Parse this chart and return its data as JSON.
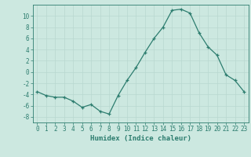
{
  "x": [
    0,
    1,
    2,
    3,
    4,
    5,
    6,
    7,
    8,
    9,
    10,
    11,
    12,
    13,
    14,
    15,
    16,
    17,
    18,
    19,
    20,
    21,
    22,
    23
  ],
  "y": [
    -3.5,
    -4.2,
    -4.5,
    -4.5,
    -5.2,
    -6.3,
    -5.8,
    -7.0,
    -7.5,
    -4.2,
    -1.5,
    0.8,
    3.5,
    6.0,
    8.0,
    11.0,
    11.2,
    10.5,
    7.0,
    4.5,
    3.0,
    -0.5,
    -1.5,
    -3.5
  ],
  "line_color": "#2d7d6f",
  "marker": "+",
  "marker_color": "#2d7d6f",
  "bg_color": "#cce8e0",
  "grid_color": "#b8d8d0",
  "axis_color": "#2d7d6f",
  "xlabel": "Humidex (Indice chaleur)",
  "ylim": [
    -9,
    12
  ],
  "xlim": [
    -0.5,
    23.5
  ],
  "yticks": [
    -8,
    -6,
    -4,
    -2,
    0,
    2,
    4,
    6,
    8,
    10
  ],
  "xticks": [
    0,
    1,
    2,
    3,
    4,
    5,
    6,
    7,
    8,
    9,
    10,
    11,
    12,
    13,
    14,
    15,
    16,
    17,
    18,
    19,
    20,
    21,
    22,
    23
  ],
  "tick_fontsize": 5.5,
  "label_fontsize": 6.5
}
